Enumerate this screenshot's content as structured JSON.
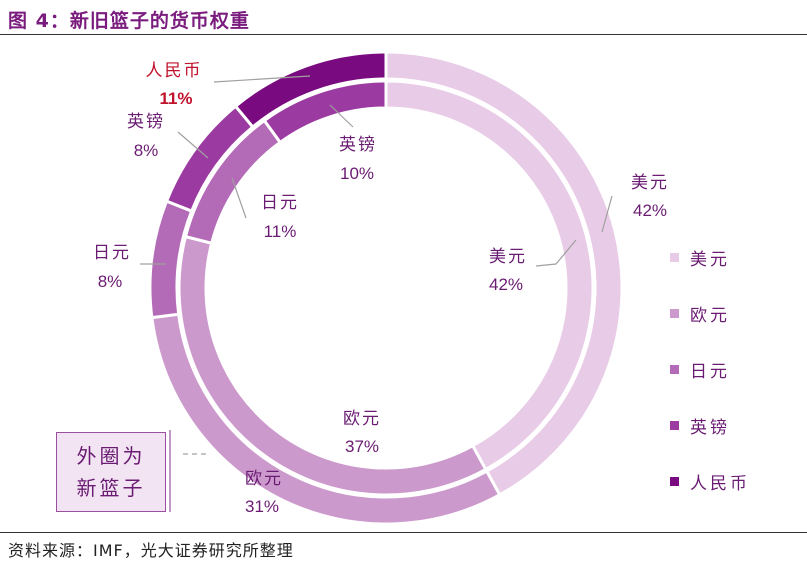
{
  "title": "图 4：新旧篮子的货币权重",
  "source": "资料来源：IMF，光大证券研究所整理",
  "note": "外圈为新篮子",
  "chart_data": {
    "type": "donut",
    "categories": [
      "美元",
      "欧元",
      "日元",
      "英镑",
      "人民币"
    ],
    "colors": [
      "#e8cbe6",
      "#cc99cc",
      "#b46bb7",
      "#9b3aa0",
      "#7a0a7f"
    ],
    "series": [
      {
        "ring": "outer",
        "values": [
          42,
          31,
          8,
          8,
          11
        ]
      },
      {
        "ring": "inner",
        "values": [
          42,
          37,
          11,
          10,
          0
        ]
      }
    ],
    "data_labels": {
      "outer": [
        {
          "name": "美元",
          "value": "42%"
        },
        {
          "name": "欧元",
          "value": "31%"
        },
        {
          "name": "日元",
          "value": "8%"
        },
        {
          "name": "英镑",
          "value": "8%"
        },
        {
          "name": "人民币",
          "value": "11%"
        }
      ],
      "inner": [
        {
          "name": "美元",
          "value": "42%"
        },
        {
          "name": "欧元",
          "value": "37%"
        },
        {
          "name": "日元",
          "value": "11%"
        },
        {
          "name": "英镑",
          "value": "10%"
        }
      ]
    },
    "legend": [
      "美元",
      "欧元",
      "日元",
      "英镑",
      "人民币"
    ],
    "legend_position": "right"
  }
}
